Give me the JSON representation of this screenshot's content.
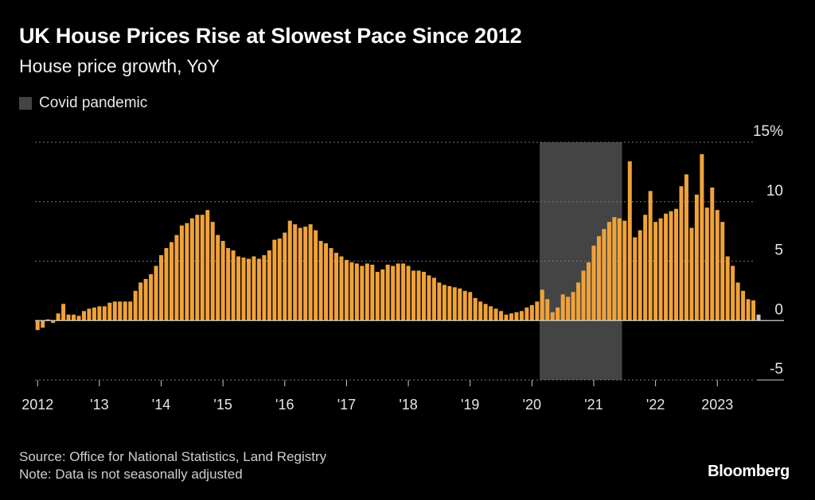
{
  "title": "UK House Prices Rise at Slowest Pace Since 2012",
  "subtitle": "House price growth, YoY",
  "legend": {
    "label": "Covid pandemic",
    "color": "#444444"
  },
  "footer": {
    "source": "Source: Office for National Statistics, Land Registry",
    "note": "Note: Data is not seasonally adjusted"
  },
  "brand": "Bloomberg",
  "colors": {
    "bar": "#f0a23a",
    "last_bar": "#c8c8c8",
    "background": "#000000",
    "shade": "#444444"
  },
  "chart_data": {
    "type": "bar",
    "title": "UK House Prices Rise at Slowest Pace Since 2012",
    "subtitle": "House price growth, YoY",
    "xlabel": "",
    "ylabel": "",
    "ylim": [
      -5,
      15
    ],
    "y_ticks": [
      "15%",
      "10",
      "5",
      "0",
      "-5"
    ],
    "y_tick_values": [
      15,
      10,
      5,
      0,
      -5
    ],
    "x_ticks": [
      "2012",
      "'13",
      "'14",
      "'15",
      "'16",
      "'17",
      "'18",
      "'19",
      "'20",
      "'21",
      "'22",
      "2023"
    ],
    "grid": "horizontal dotted",
    "start": "2012-01",
    "end": "2023-06",
    "shaded_region": {
      "label": "Covid pandemic",
      "from": "2020-03",
      "to": "2021-06"
    },
    "series": [
      {
        "values": [
          -0.8,
          -0.6,
          0.1,
          -0.2,
          0.6,
          1.4,
          0.5,
          0.5,
          0.4,
          0.8,
          1.0,
          1.1,
          1.2,
          1.2,
          1.5,
          1.6,
          1.6,
          1.6,
          1.6,
          2.5,
          3.2,
          3.5,
          3.9,
          4.6,
          5.5,
          6.1,
          6.6,
          7.2,
          8.0,
          8.2,
          8.6,
          8.9,
          8.9,
          9.3,
          8.3,
          7.2,
          6.7,
          6.1,
          5.9,
          5.4,
          5.3,
          5.2,
          5.4,
          5.2,
          5.5,
          5.9,
          6.8,
          6.9,
          7.4,
          8.4,
          8.1,
          7.8,
          7.9,
          8.1,
          7.6,
          6.7,
          6.5,
          6.1,
          5.7,
          5.4,
          5.1,
          4.9,
          4.8,
          4.6,
          4.8,
          4.7,
          4.1,
          4.3,
          4.7,
          4.6,
          4.8,
          4.8,
          4.6,
          4.2,
          4.2,
          4.1,
          3.8,
          3.6,
          3.2,
          3.0,
          2.9,
          2.8,
          2.7,
          2.5,
          2.4,
          1.9,
          1.6,
          1.4,
          1.2,
          1.0,
          0.8,
          0.5,
          0.6,
          0.7,
          0.8,
          1.1,
          1.3,
          1.6,
          2.6,
          1.8,
          0.7,
          1.1,
          2.2,
          2.0,
          2.4,
          3.2,
          4.2,
          4.9,
          6.3,
          7.1,
          7.7,
          8.3,
          8.7,
          8.6,
          8.4,
          13.4,
          7.0,
          7.6,
          8.9,
          10.9,
          8.3,
          8.6,
          9.0,
          9.2,
          9.4,
          11.3,
          12.3,
          7.8,
          10.6,
          14.0,
          9.5,
          11.2,
          9.3,
          8.3,
          5.4,
          4.6,
          3.2,
          2.5,
          1.8,
          1.7,
          0.5
        ]
      }
    ]
  }
}
